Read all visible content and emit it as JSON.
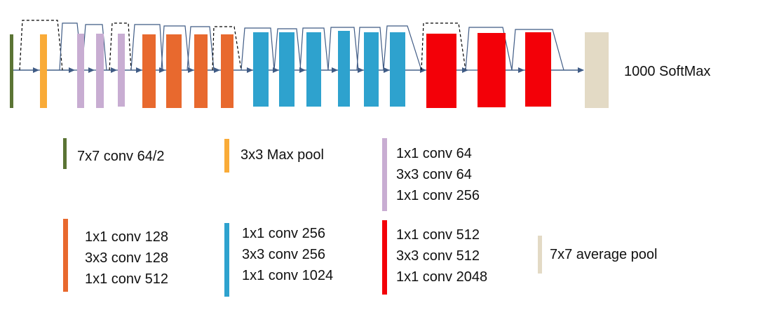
{
  "output_label": "1000 SoftMax",
  "colors": {
    "conv1": "#5B7434",
    "maxpool": "#F9AB38",
    "stage1": "#C8ADD2",
    "stage2": "#E8692E",
    "stage3": "#2EA2CE",
    "stage4": "#F30008",
    "avgpool": "#E3DAC5",
    "line": "#3F5B85"
  },
  "legend": [
    {
      "key": "conv1",
      "lines": [
        "7x7 conv 64/2"
      ]
    },
    {
      "key": "maxpool",
      "lines": [
        "3x3 Max pool"
      ]
    },
    {
      "key": "stage1",
      "lines": [
        "1x1 conv 64",
        "3x3 conv 64",
        "1x1 conv 256"
      ]
    },
    {
      "key": "stage2",
      "lines": [
        "1x1 conv 128",
        "3x3 conv 128",
        "1x1 conv 512"
      ]
    },
    {
      "key": "stage3",
      "lines": [
        "1x1 conv 256",
        "3x3 conv 256",
        "1x1 conv 1024"
      ]
    },
    {
      "key": "stage4",
      "lines": [
        "1x1 conv 512",
        "3x3 conv 512",
        "1x1 conv 2048"
      ]
    },
    {
      "key": "avgpool",
      "lines": [
        "7x7 average pool"
      ]
    }
  ]
}
